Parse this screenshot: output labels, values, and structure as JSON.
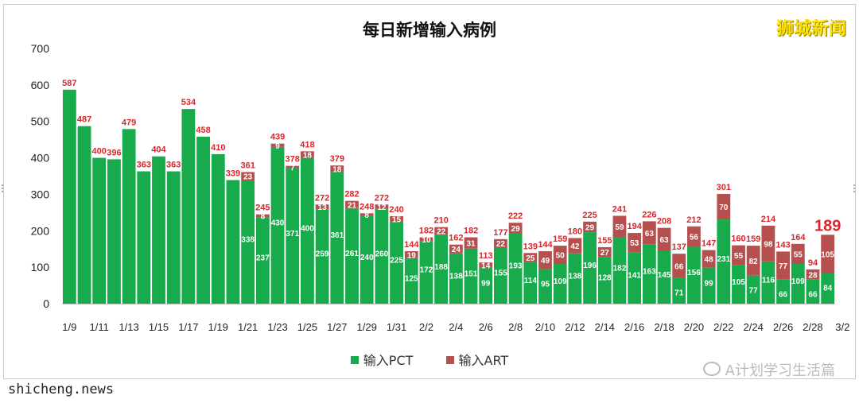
{
  "page": {
    "title": "每日新增输入病例",
    "brand": "狮城新闻",
    "footer_left": "shicheng.news",
    "footer_right": "A计划学习生活篇"
  },
  "colors": {
    "pct": "#17ab4b",
    "art": "#b5504f",
    "total_label": "#d9262a",
    "pct_label": "#ffffff",
    "art_label": "#ffffff"
  },
  "chart_data": {
    "type": "bar",
    "stacked": true,
    "title": "每日新增输入病例",
    "ylim": [
      0,
      700
    ],
    "yticks": [
      0,
      100,
      200,
      300,
      400,
      500,
      600,
      700
    ],
    "x_tick_labels": [
      "1/9",
      "1/11",
      "1/13",
      "1/15",
      "1/17",
      "1/19",
      "1/21",
      "1/23",
      "1/25",
      "1/27",
      "1/29",
      "1/31",
      "2/2",
      "2/4",
      "2/6",
      "2/8",
      "2/10",
      "2/12",
      "2/14",
      "2/16",
      "2/18",
      "2/20",
      "2/22",
      "2/24",
      "2/26",
      "2/28",
      "3/2"
    ],
    "legend_position": "bottom",
    "series": [
      {
        "name": "输入PCT",
        "values": [
          587,
          487,
          400,
          396,
          479,
          363,
          404,
          363,
          534,
          458,
          410,
          339,
          338,
          237,
          430,
          371,
          400,
          259,
          361,
          261,
          240,
          260,
          225,
          125,
          172,
          188,
          138,
          151,
          99,
          155,
          193,
          114,
          95,
          109,
          138,
          196,
          128,
          182,
          141,
          163,
          145,
          71,
          156,
          99,
          231,
          105,
          77,
          116,
          66,
          109,
          66,
          84
        ]
      },
      {
        "name": "输入ART",
        "values": [
          0,
          0,
          0,
          0,
          0,
          0,
          0,
          0,
          0,
          0,
          0,
          0,
          23,
          8,
          9,
          7,
          18,
          13,
          18,
          21,
          8,
          12,
          15,
          19,
          10,
          22,
          24,
          31,
          14,
          22,
          29,
          25,
          49,
          50,
          42,
          29,
          27,
          59,
          53,
          63,
          63,
          66,
          56,
          48,
          70,
          55,
          82,
          98,
          77,
          55,
          28,
          105
        ]
      }
    ],
    "totals": [
      587,
      487,
      400,
      396,
      479,
      363,
      404,
      363,
      534,
      458,
      410,
      339,
      361,
      245,
      439,
      378,
      418,
      272,
      379,
      282,
      248,
      272,
      240,
      144,
      182,
      210,
      162,
      182,
      113,
      177,
      222,
      139,
      144,
      159,
      180,
      225,
      155,
      241,
      194,
      226,
      208,
      137,
      212,
      147,
      301,
      160,
      159,
      214,
      143,
      164,
      94,
      189
    ],
    "highlight_last_total": true
  }
}
